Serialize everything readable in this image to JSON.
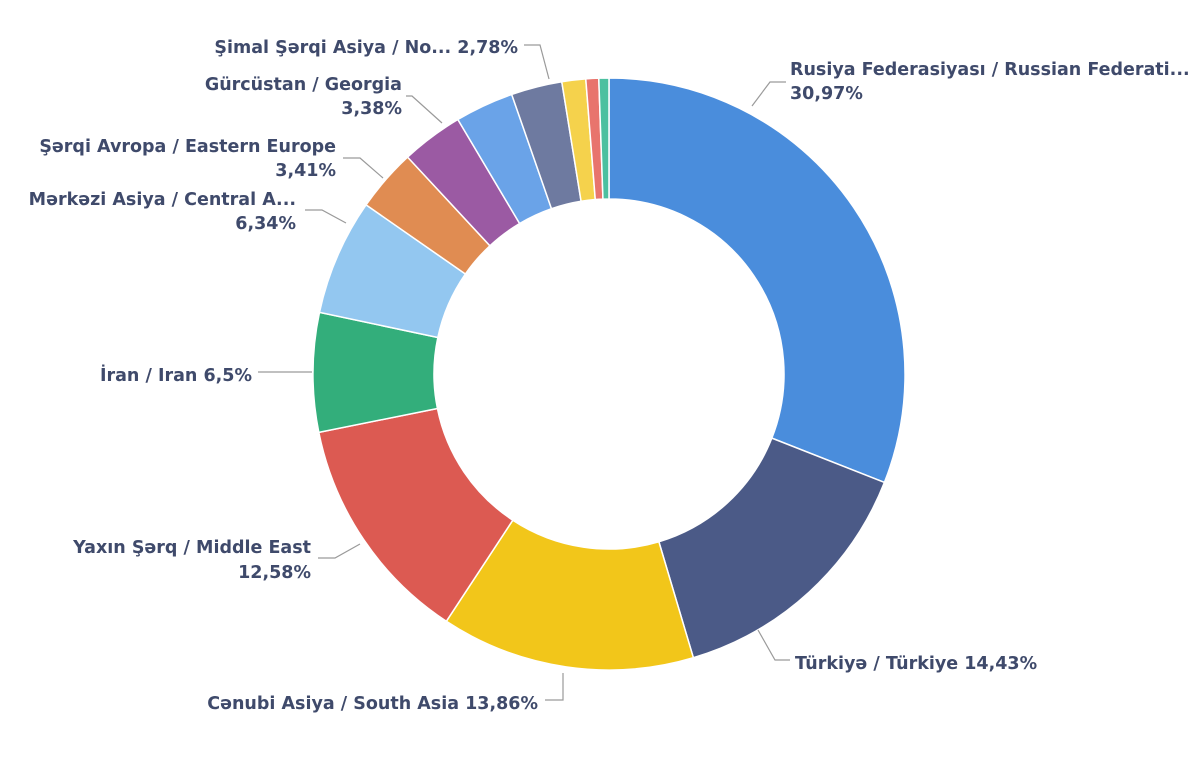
{
  "chart_data": {
    "type": "pie",
    "donut": true,
    "title": "",
    "legend": "none",
    "slices": [
      {
        "name": "Rusiya Federasiyası / Russian Federati...",
        "value": 30.97,
        "label_line1": "Rusiya Federasiyası / Russian Federati...",
        "label_line2": "30,97%",
        "color": "#4a8ddc"
      },
      {
        "name": "Türkiyə / Türkiye",
        "value": 14.43,
        "label_line1": "Türkiyə / Türkiye 14,43%",
        "label_line2": "",
        "color": "#4b5a87"
      },
      {
        "name": "Cənubi Asiya / South Asia",
        "value": 13.86,
        "label_line1": "Cənubi Asiya / South Asia 13,86%",
        "label_line2": "",
        "color": "#f2c61a"
      },
      {
        "name": "Yaxın Şərq / Middle East",
        "value": 12.58,
        "label_line1": "Yaxın Şərq / Middle East",
        "label_line2": "12,58%",
        "color": "#dc5a52"
      },
      {
        "name": "İran / Iran",
        "value": 6.5,
        "label_line1": "İran / Iran 6,5%",
        "label_line2": "",
        "color": "#33ae7b"
      },
      {
        "name": "Mərkəzi Asiya / Central A...",
        "value": 6.34,
        "label_line1": "Mərkəzi Asiya / Central A...",
        "label_line2": "6,34%",
        "color": "#93c7f0"
      },
      {
        "name": "Şərqi Avropa / Eastern Europe",
        "value": 3.41,
        "label_line1": "Şərqi Avropa / Eastern Europe",
        "label_line2": "3,41%",
        "color": "#e08c52"
      },
      {
        "name": "Gürcüstan / Georgia",
        "value": 3.38,
        "label_line1": "Gürcüstan / Georgia",
        "label_line2": "3,38%",
        "color": "#9b5aa3"
      },
      {
        "name": "",
        "value": 3.2,
        "label_line1": "",
        "label_line2": "",
        "color": "#6aa3e8"
      },
      {
        "name": "Şimal Şərqi Asiya / No...",
        "value": 2.78,
        "label_line1": "Şimal Şərqi Asiya / No... 2,78%",
        "label_line2": "",
        "color": "#6e7aa0"
      },
      {
        "name": "",
        "value": 1.3,
        "label_line1": "",
        "label_line2": "",
        "color": "#f5d24c"
      },
      {
        "name": "",
        "value": 0.7,
        "label_line1": "",
        "label_line2": "",
        "color": "#e8746d"
      },
      {
        "name": "",
        "value": 0.55,
        "label_line1": "",
        "label_line2": "",
        "color": "#4cc0a0"
      }
    ]
  }
}
